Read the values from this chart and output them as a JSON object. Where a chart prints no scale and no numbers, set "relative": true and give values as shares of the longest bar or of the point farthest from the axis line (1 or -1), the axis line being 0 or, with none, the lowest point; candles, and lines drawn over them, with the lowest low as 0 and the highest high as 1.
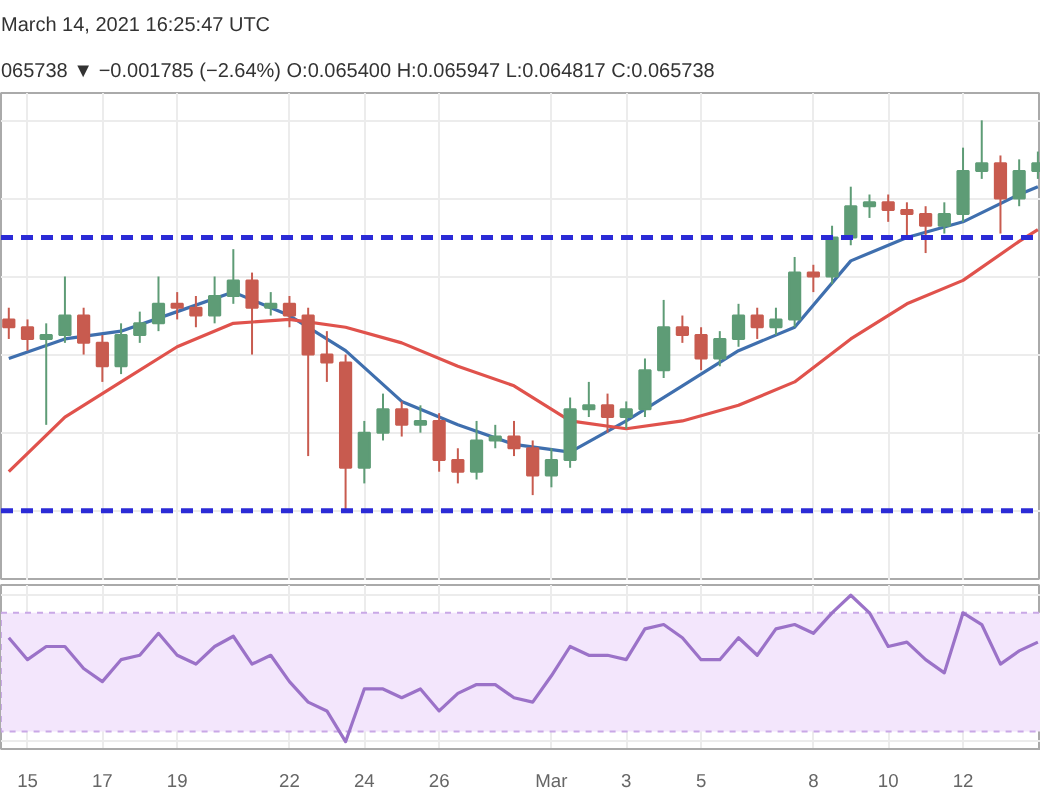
{
  "chart_data": [
    {
      "type": "candlestick",
      "relative": true,
      "annotations": [
        "March 14, 2021 16:25:47 UTC",
        "065738 ▼ −0.001785 (−2.64%) O:0.065400 H:0.065947 L:0.064817 C:0.065738"
      ],
      "x": [
        "2021-02-14T12:00",
        "2021-02-15T00:00",
        "2021-02-15T12:00",
        "2021-02-16T00:00",
        "2021-02-16T12:00",
        "2021-02-17T00:00",
        "2021-02-17T12:00",
        "2021-02-18T00:00",
        "2021-02-18T12:00",
        "2021-02-19T00:00",
        "2021-02-19T12:00",
        "2021-02-20T00:00",
        "2021-02-20T12:00",
        "2021-02-21T00:00",
        "2021-02-21T12:00",
        "2021-02-22T00:00",
        "2021-02-22T12:00",
        "2021-02-23T00:00",
        "2021-02-23T12:00",
        "2021-02-24T00:00",
        "2021-02-24T12:00",
        "2021-02-25T00:00",
        "2021-02-25T12:00",
        "2021-02-26T00:00",
        "2021-02-26T12:00",
        "2021-02-27T00:00",
        "2021-02-27T12:00",
        "2021-02-28T00:00",
        "2021-02-28T12:00",
        "2021-03-01T00:00",
        "2021-03-01T12:00",
        "2021-03-02T00:00",
        "2021-03-02T12:00",
        "2021-03-03T00:00",
        "2021-03-03T12:00",
        "2021-03-04T00:00",
        "2021-03-04T12:00",
        "2021-03-05T00:00",
        "2021-03-05T12:00",
        "2021-03-06T00:00",
        "2021-03-06T12:00",
        "2021-03-07T00:00",
        "2021-03-07T12:00",
        "2021-03-08T00:00",
        "2021-03-08T12:00",
        "2021-03-09T00:00",
        "2021-03-09T12:00",
        "2021-03-10T00:00",
        "2021-03-10T12:00",
        "2021-03-11T00:00",
        "2021-03-11T12:00",
        "2021-03-12T00:00",
        "2021-03-12T12:00",
        "2021-03-13T00:00",
        "2021-03-13T12:00",
        "2021-03-14T00:00"
      ],
      "ohlc": [
        [
          0.49,
          0.52,
          0.44,
          0.47
        ],
        [
          0.47,
          0.49,
          0.41,
          0.44
        ],
        [
          0.44,
          0.48,
          0.22,
          0.45
        ],
        [
          0.45,
          0.6,
          0.43,
          0.5
        ],
        [
          0.5,
          0.52,
          0.4,
          0.43
        ],
        [
          0.43,
          0.45,
          0.33,
          0.37
        ],
        [
          0.37,
          0.48,
          0.35,
          0.45
        ],
        [
          0.45,
          0.51,
          0.43,
          0.48
        ],
        [
          0.48,
          0.6,
          0.46,
          0.53
        ],
        [
          0.53,
          0.56,
          0.49,
          0.52
        ],
        [
          0.52,
          0.55,
          0.47,
          0.5
        ],
        [
          0.5,
          0.6,
          0.48,
          0.55
        ],
        [
          0.55,
          0.67,
          0.53,
          0.59
        ],
        [
          0.59,
          0.61,
          0.4,
          0.52
        ],
        [
          0.52,
          0.56,
          0.5,
          0.53
        ],
        [
          0.53,
          0.55,
          0.47,
          0.5
        ],
        [
          0.5,
          0.52,
          0.14,
          0.4
        ],
        [
          0.4,
          0.46,
          0.33,
          0.38
        ],
        [
          0.38,
          0.4,
          0.0,
          0.11
        ],
        [
          0.11,
          0.23,
          0.07,
          0.2
        ],
        [
          0.2,
          0.3,
          0.18,
          0.26
        ],
        [
          0.26,
          0.28,
          0.19,
          0.22
        ],
        [
          0.22,
          0.27,
          0.2,
          0.23
        ],
        [
          0.23,
          0.25,
          0.1,
          0.13
        ],
        [
          0.13,
          0.16,
          0.07,
          0.1
        ],
        [
          0.1,
          0.23,
          0.08,
          0.18
        ],
        [
          0.18,
          0.22,
          0.16,
          0.19
        ],
        [
          0.19,
          0.23,
          0.14,
          0.16
        ],
        [
          0.16,
          0.18,
          0.04,
          0.09
        ],
        [
          0.09,
          0.16,
          0.06,
          0.13
        ],
        [
          0.13,
          0.29,
          0.11,
          0.26
        ],
        [
          0.26,
          0.33,
          0.24,
          0.27
        ],
        [
          0.27,
          0.3,
          0.2,
          0.24
        ],
        [
          0.24,
          0.28,
          0.21,
          0.26
        ],
        [
          0.26,
          0.39,
          0.24,
          0.36
        ],
        [
          0.36,
          0.54,
          0.34,
          0.47
        ],
        [
          0.47,
          0.5,
          0.43,
          0.45
        ],
        [
          0.45,
          0.47,
          0.36,
          0.39
        ],
        [
          0.39,
          0.46,
          0.37,
          0.44
        ],
        [
          0.44,
          0.53,
          0.42,
          0.5
        ],
        [
          0.5,
          0.52,
          0.44,
          0.47
        ],
        [
          0.47,
          0.52,
          0.45,
          0.49
        ],
        [
          0.49,
          0.65,
          0.47,
          0.61
        ],
        [
          0.61,
          0.63,
          0.56,
          0.6
        ],
        [
          0.6,
          0.73,
          0.58,
          0.7
        ],
        [
          0.7,
          0.83,
          0.68,
          0.78
        ],
        [
          0.78,
          0.81,
          0.75,
          0.79
        ],
        [
          0.79,
          0.81,
          0.74,
          0.77
        ],
        [
          0.77,
          0.79,
          0.7,
          0.76
        ],
        [
          0.76,
          0.78,
          0.66,
          0.73
        ],
        [
          0.73,
          0.79,
          0.71,
          0.76
        ],
        [
          0.76,
          0.93,
          0.74,
          0.87
        ],
        [
          0.87,
          1.0,
          0.85,
          0.89
        ],
        [
          0.89,
          0.91,
          0.71,
          0.8
        ],
        [
          0.8,
          0.9,
          0.78,
          0.87
        ],
        [
          0.87,
          0.92,
          0.85,
          0.89
        ]
      ],
      "colors": [
        "#c85b4f",
        "#c85b4f",
        "#5e9c76",
        "#5e9c76",
        "#c85b4f",
        "#c85b4f",
        "#5e9c76",
        "#5e9c76",
        "#5e9c76",
        "#c85b4f",
        "#c85b4f",
        "#5e9c76",
        "#5e9c76",
        "#c85b4f",
        "#5e9c76",
        "#c85b4f",
        "#c85b4f",
        "#c85b4f",
        "#c85b4f",
        "#5e9c76",
        "#5e9c76",
        "#c85b4f",
        "#5e9c76",
        "#c85b4f",
        "#c85b4f",
        "#5e9c76",
        "#5e9c76",
        "#c85b4f",
        "#c85b4f",
        "#5e9c76",
        "#5e9c76",
        "#5e9c76",
        "#c85b4f",
        "#5e9c76",
        "#5e9c76",
        "#5e9c76",
        "#c85b4f",
        "#c85b4f",
        "#5e9c76",
        "#5e9c76",
        "#c85b4f",
        "#5e9c76",
        "#5e9c76",
        "#c85b4f",
        "#5e9c76",
        "#5e9c76",
        "#5e9c76",
        "#c85b4f",
        "#c85b4f",
        "#c85b4f",
        "#5e9c76",
        "#5e9c76",
        "#5e9c76",
        "#c85b4f",
        "#5e9c76",
        "#5e9c76"
      ],
      "series": [
        {
          "type": "line",
          "color": "#3f6fae",
          "x": [
            "2021-02-14T12:00",
            "2021-02-16T00:00",
            "2021-02-17T12:00",
            "2021-02-19T00:00",
            "2021-02-20T12:00",
            "2021-02-22T00:00",
            "2021-02-23T12:00",
            "2021-02-25T00:00",
            "2021-02-26T12:00",
            "2021-02-28T00:00",
            "2021-03-01T12:00",
            "2021-03-03T00:00",
            "2021-03-04T12:00",
            "2021-03-06T00:00",
            "2021-03-07T12:00",
            "2021-03-09T00:00",
            "2021-03-10T12:00",
            "2021-03-12T00:00",
            "2021-03-13T12:00",
            "2021-03-14T00:00"
          ],
          "values": [
            0.39,
            0.44,
            0.46,
            0.51,
            0.56,
            0.5,
            0.41,
            0.28,
            0.22,
            0.17,
            0.15,
            0.23,
            0.32,
            0.41,
            0.47,
            0.64,
            0.7,
            0.74,
            0.81,
            0.83
          ]
        },
        {
          "type": "line",
          "color": "#e0524c",
          "x": [
            "2021-02-14T12:00",
            "2021-02-16T00:00",
            "2021-02-17T12:00",
            "2021-02-19T00:00",
            "2021-02-20T12:00",
            "2021-02-22T00:00",
            "2021-02-23T12:00",
            "2021-02-25T00:00",
            "2021-02-26T12:00",
            "2021-02-28T00:00",
            "2021-03-01T12:00",
            "2021-03-03T00:00",
            "2021-03-04T12:00",
            "2021-03-06T00:00",
            "2021-03-07T12:00",
            "2021-03-09T00:00",
            "2021-03-10T12:00",
            "2021-03-12T00:00",
            "2021-03-13T12:00",
            "2021-03-14T00:00"
          ],
          "values": [
            0.1,
            0.24,
            0.33,
            0.42,
            0.48,
            0.49,
            0.47,
            0.43,
            0.37,
            0.32,
            0.23,
            0.21,
            0.23,
            0.27,
            0.33,
            0.44,
            0.53,
            0.59,
            0.69,
            0.72
          ]
        }
      ],
      "ref_lines": [
        {
          "axis": "y",
          "value": 0.7,
          "color": "#2b2bd6",
          "line_style": "dashed"
        },
        {
          "axis": "y",
          "value": 0.0,
          "color": "#2b2bd6",
          "line_style": "dashed"
        }
      ],
      "xlim": [
        "2021-02-14T07:00",
        "2021-03-14T02:00"
      ],
      "xticks": [
        {
          "value": "2021-02-15",
          "label": null
        },
        {
          "value": "2021-02-17",
          "label": null
        },
        {
          "value": "2021-02-19",
          "label": null
        },
        {
          "value": "2021-02-22",
          "label": null
        },
        {
          "value": "2021-02-24",
          "label": null
        },
        {
          "value": "2021-02-26",
          "label": null
        },
        {
          "value": "2021-03-01",
          "label": null
        },
        {
          "value": "2021-03-03",
          "label": null
        },
        {
          "value": "2021-03-05",
          "label": null
        },
        {
          "value": "2021-03-08",
          "label": null
        },
        {
          "value": "2021-03-10",
          "label": null
        },
        {
          "value": "2021-03-12",
          "label": null
        }
      ],
      "tick_labels": false,
      "grid": true
    },
    {
      "type": "line",
      "relative": true,
      "x": [
        "2021-02-14T12:00",
        "2021-02-15T00:00",
        "2021-02-15T12:00",
        "2021-02-16T00:00",
        "2021-02-16T12:00",
        "2021-02-17T00:00",
        "2021-02-17T12:00",
        "2021-02-18T00:00",
        "2021-02-18T12:00",
        "2021-02-19T00:00",
        "2021-02-19T12:00",
        "2021-02-20T00:00",
        "2021-02-20T12:00",
        "2021-02-21T00:00",
        "2021-02-21T12:00",
        "2021-02-22T00:00",
        "2021-02-22T12:00",
        "2021-02-23T00:00",
        "2021-02-23T12:00",
        "2021-02-24T00:00",
        "2021-02-24T12:00",
        "2021-02-25T00:00",
        "2021-02-25T12:00",
        "2021-02-26T00:00",
        "2021-02-26T12:00",
        "2021-02-27T00:00",
        "2021-02-27T12:00",
        "2021-02-28T00:00",
        "2021-02-28T12:00",
        "2021-03-01T00:00",
        "2021-03-01T12:00",
        "2021-03-02T00:00",
        "2021-03-02T12:00",
        "2021-03-03T00:00",
        "2021-03-03T12:00",
        "2021-03-04T00:00",
        "2021-03-04T12:00",
        "2021-03-05T00:00",
        "2021-03-05T12:00",
        "2021-03-06T00:00",
        "2021-03-06T12:00",
        "2021-03-07T00:00",
        "2021-03-07T12:00",
        "2021-03-08T00:00",
        "2021-03-08T12:00",
        "2021-03-09T00:00",
        "2021-03-09T12:00",
        "2021-03-10T00:00",
        "2021-03-10T12:00",
        "2021-03-11T00:00",
        "2021-03-11T12:00",
        "2021-03-12T00:00",
        "2021-03-12T12:00",
        "2021-03-13T00:00",
        "2021-03-13T12:00",
        "2021-03-14T00:00"
      ],
      "series": [
        {
          "color": "#9b72c8",
          "values": [
            0.71,
            0.56,
            0.65,
            0.65,
            0.5,
            0.41,
            0.56,
            0.59,
            0.74,
            0.59,
            0.53,
            0.65,
            0.72,
            0.53,
            0.59,
            0.41,
            0.27,
            0.21,
            0.0,
            0.36,
            0.36,
            0.3,
            0.36,
            0.21,
            0.33,
            0.39,
            0.39,
            0.3,
            0.27,
            0.45,
            0.65,
            0.59,
            0.59,
            0.56,
            0.77,
            0.8,
            0.71,
            0.56,
            0.56,
            0.71,
            0.59,
            0.77,
            0.8,
            0.74,
            0.88,
            1.0,
            0.88,
            0.65,
            0.68,
            0.56,
            0.47,
            0.88,
            0.8,
            0.53,
            0.62,
            0.68
          ]
        }
      ],
      "bands": [
        {
          "axis": "y",
          "from": 0.07,
          "to": 0.88,
          "color": "#f3e6fc"
        }
      ],
      "xlim": [
        "2021-02-14T07:00",
        "2021-03-14T02:00"
      ],
      "xticks": [
        {
          "value": "2021-02-15",
          "label": "15"
        },
        {
          "value": "2021-02-17",
          "label": "17"
        },
        {
          "value": "2021-02-19",
          "label": "19"
        },
        {
          "value": "2021-02-22",
          "label": "22"
        },
        {
          "value": "2021-02-24",
          "label": "24"
        },
        {
          "value": "2021-02-26",
          "label": "26"
        },
        {
          "value": "2021-03-01",
          "label": "Mar"
        },
        {
          "value": "2021-03-03",
          "label": "3"
        },
        {
          "value": "2021-03-05",
          "label": "5"
        },
        {
          "value": "2021-03-08",
          "label": "8"
        },
        {
          "value": "2021-03-10",
          "label": "10"
        },
        {
          "value": "2021-03-12",
          "label": "12"
        }
      ],
      "tick_labels": "x",
      "grid": true
    }
  ]
}
